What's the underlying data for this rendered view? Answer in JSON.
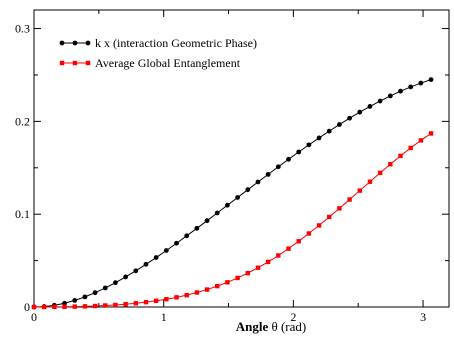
{
  "chart_data": {
    "type": "line",
    "title": "",
    "xlabel_bold": "Angle",
    "xlabel_rest": " θ (rad)",
    "ylabel": "",
    "xlim": [
      0,
      3.2
    ],
    "ylim": [
      0,
      0.32
    ],
    "x_ticks": [
      0,
      1,
      2,
      3
    ],
    "x_tick_labels": [
      "0",
      "1",
      "2",
      "3"
    ],
    "y_ticks": [
      0,
      0.1,
      0.2,
      0.3
    ],
    "y_tick_labels": [
      "0",
      "0.1",
      "0.2",
      "0.3"
    ],
    "grid": false,
    "legend_position": "top-left",
    "series": [
      {
        "name": "k x (interaction Geometric Phase)",
        "color": "#000000",
        "marker": "circle",
        "x": [
          0.0,
          0.0785,
          0.157,
          0.2355,
          0.314,
          0.3925,
          0.471,
          0.5495,
          0.628,
          0.7065,
          0.785,
          0.8635,
          0.942,
          1.0205,
          1.099,
          1.1775,
          1.256,
          1.3345,
          1.413,
          1.4915,
          1.57,
          1.6485,
          1.727,
          1.8055,
          1.884,
          1.9625,
          2.041,
          2.1195,
          2.198,
          2.2765,
          2.355,
          2.4335,
          2.512,
          2.5905,
          2.669,
          2.7475,
          2.826,
          2.9045,
          2.983,
          3.0615
        ],
        "y": [
          0.0,
          0.0005,
          0.0018,
          0.004,
          0.0071,
          0.0109,
          0.0154,
          0.0205,
          0.0262,
          0.0324,
          0.039,
          0.046,
          0.0533,
          0.0609,
          0.0687,
          0.0767,
          0.0848,
          0.093,
          0.1013,
          0.1097,
          0.118,
          0.1264,
          0.1347,
          0.1429,
          0.1511,
          0.1591,
          0.167,
          0.1747,
          0.1822,
          0.1895,
          0.1966,
          0.2034,
          0.2099,
          0.2161,
          0.2219,
          0.2274,
          0.2325,
          0.2371,
          0.2413,
          0.245
        ]
      },
      {
        "name": "Average Global Entanglement",
        "color": "#ff0000",
        "marker": "square",
        "x": [
          0.0,
          0.0785,
          0.157,
          0.2355,
          0.314,
          0.3925,
          0.471,
          0.5495,
          0.628,
          0.7065,
          0.785,
          0.8635,
          0.942,
          1.0205,
          1.099,
          1.1775,
          1.256,
          1.3345,
          1.413,
          1.4915,
          1.57,
          1.6485,
          1.727,
          1.8055,
          1.884,
          1.9625,
          2.041,
          2.1195,
          2.198,
          2.2765,
          2.355,
          2.4335,
          2.512,
          2.5905,
          2.669,
          2.7475,
          2.826,
          2.9045,
          2.983,
          3.0615
        ],
        "y": [
          0.0,
          0.0,
          0.0001,
          0.0002,
          0.0004,
          0.0007,
          0.0011,
          0.0016,
          0.0022,
          0.003,
          0.004,
          0.0052,
          0.0067,
          0.0084,
          0.0104,
          0.0128,
          0.0156,
          0.0188,
          0.0225,
          0.0266,
          0.0313,
          0.0365,
          0.0423,
          0.0486,
          0.0555,
          0.0629,
          0.0708,
          0.0792,
          0.0879,
          0.097,
          0.1063,
          0.1158,
          0.1254,
          0.135,
          0.1445,
          0.1538,
          0.1628,
          0.1714,
          0.1795,
          0.187
        ]
      }
    ]
  }
}
